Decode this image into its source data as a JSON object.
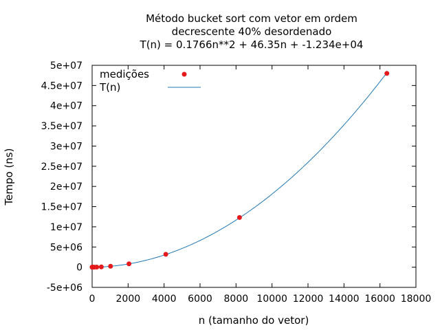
{
  "chart_data": {
    "type": "scatter",
    "title_lines": [
      "Método bucket sort com vetor em ordem",
      "decrescente 40% desordenado",
      "T(n) = 0.1766n**2 + 46.35n + -1.234e+04"
    ],
    "xlabel": "n (tamanho do vetor)",
    "ylabel": "Tempo (ns)",
    "xlim": [
      0,
      18000
    ],
    "ylim": [
      -5000000,
      50000000
    ],
    "x_ticks": [
      0,
      2000,
      4000,
      6000,
      8000,
      10000,
      12000,
      14000,
      16000,
      18000
    ],
    "x_tick_labels": [
      "0",
      "2000",
      "4000",
      "6000",
      "8000",
      "10000",
      "12000",
      "14000",
      "16000",
      "18000"
    ],
    "y_ticks": [
      -5000000,
      0,
      5000000,
      10000000,
      15000000,
      20000000,
      25000000,
      30000000,
      35000000,
      40000000,
      45000000,
      50000000
    ],
    "y_tick_labels": [
      "-5e+06",
      "0",
      "5e+06",
      "1e+07",
      "1.5e+07",
      "2e+07",
      "2.5e+07",
      "3e+07",
      "3.5e+07",
      "4e+07",
      "4.5e+07",
      "5e+07"
    ],
    "grid": false,
    "legend_position": "top-left",
    "series": [
      {
        "name": "medições",
        "kind": "points",
        "color": "#e41a1c",
        "x": [
          2,
          4,
          8,
          16,
          32,
          64,
          128,
          256,
          512,
          1024,
          2048,
          4096,
          8192,
          16384
        ],
        "y": [
          0,
          0,
          0,
          0,
          0,
          0,
          10000,
          25000,
          60000,
          230000,
          830000,
          3200000,
          12300000,
          48000000
        ]
      },
      {
        "name": "T(n)",
        "kind": "line",
        "color": "#1f78b4",
        "formula": {
          "a": 0.1766,
          "b": 46.35,
          "c": -12340
        },
        "x_range": [
          0,
          16384
        ]
      }
    ]
  }
}
